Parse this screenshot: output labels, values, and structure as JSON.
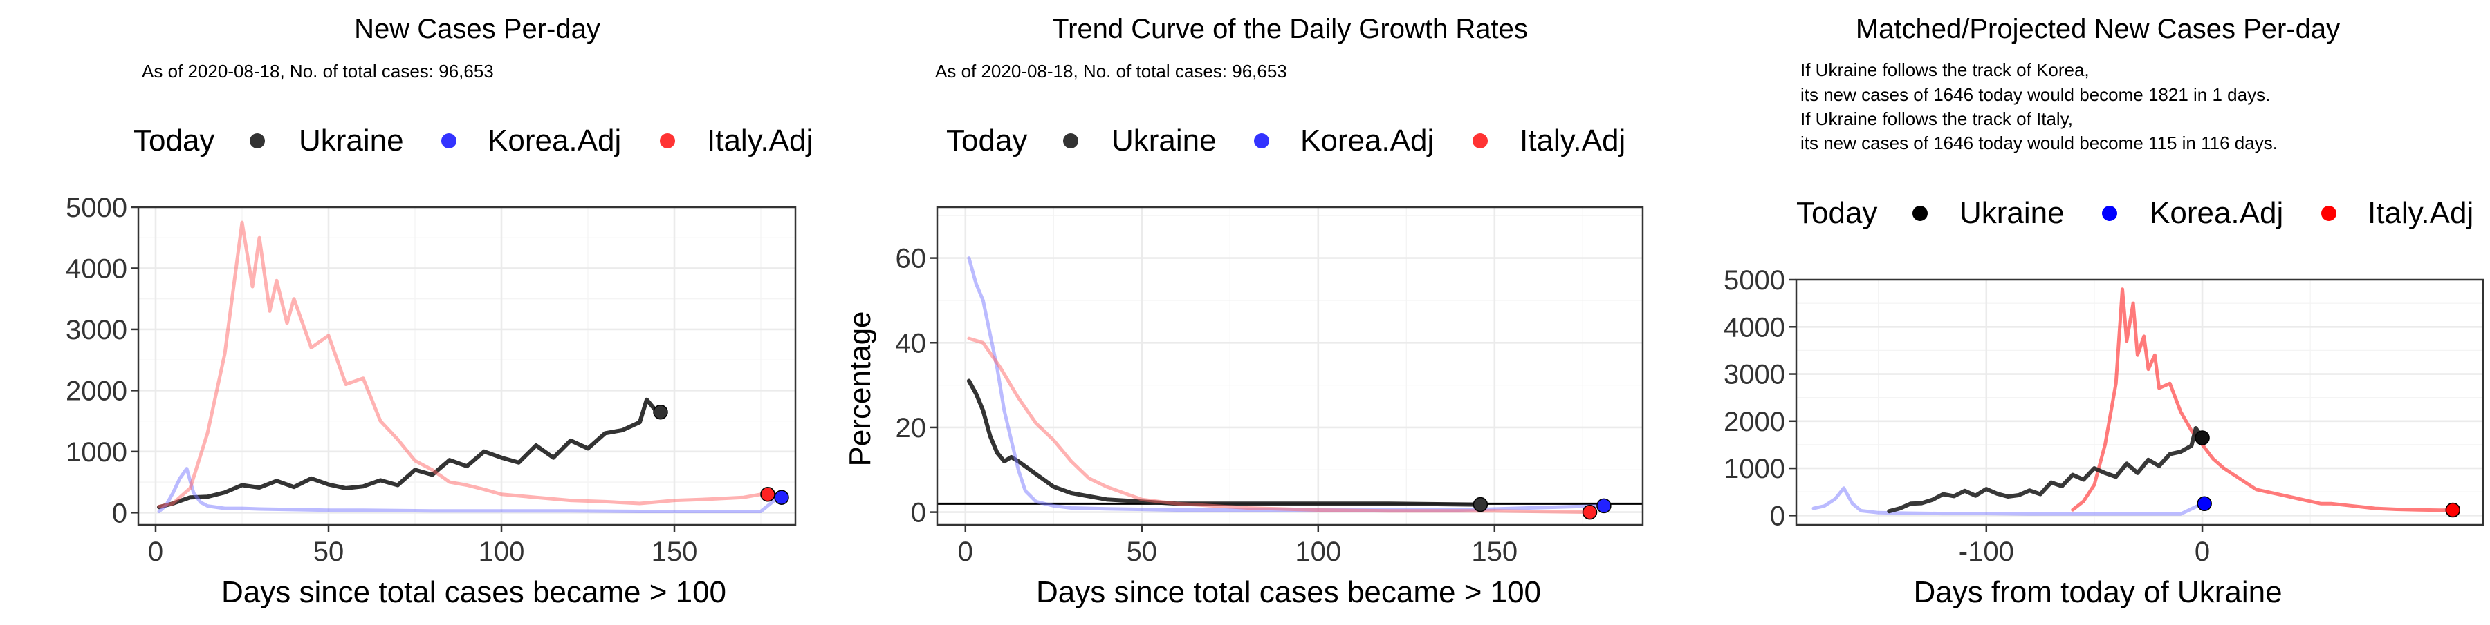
{
  "chart_data": [
    {
      "type": "line",
      "title": "New Cases Per-day",
      "subtitle": "As of 2020-08-18, No. of total cases: 96,653",
      "xlabel": "Days since total cases became > 100",
      "ylabel": "",
      "xlim": [
        -5,
        185
      ],
      "ylim": [
        -200,
        5000
      ],
      "xticks": [
        0,
        50,
        100,
        150
      ],
      "yticks": [
        0,
        1000,
        2000,
        3000,
        4000,
        5000
      ],
      "legend": {
        "position": "top",
        "title": "Today",
        "entries": [
          "Ukraine",
          "Korea.Adj",
          "Italy.Adj"
        ]
      },
      "series": [
        {
          "name": "Ukraine",
          "color": "#000000",
          "x": [
            1,
            5,
            10,
            15,
            20,
            25,
            30,
            35,
            40,
            45,
            50,
            55,
            60,
            65,
            70,
            75,
            80,
            85,
            90,
            95,
            100,
            105,
            110,
            115,
            120,
            125,
            130,
            135,
            140,
            142,
            145
          ],
          "y": [
            90,
            150,
            250,
            260,
            330,
            450,
            410,
            520,
            420,
            560,
            460,
            400,
            430,
            530,
            450,
            700,
            620,
            860,
            760,
            1000,
            900,
            820,
            1100,
            900,
            1180,
            1050,
            1300,
            1350,
            1480,
            1850,
            1646
          ]
        },
        {
          "name": "Korea.Adj",
          "color": "#0000ff",
          "x": [
            1,
            3,
            5,
            7,
            9,
            11,
            13,
            15,
            20,
            25,
            30,
            40,
            50,
            60,
            80,
            100,
            120,
            140,
            160,
            175,
            180
          ],
          "y": [
            20,
            120,
            320,
            560,
            720,
            320,
            170,
            110,
            70,
            70,
            60,
            50,
            40,
            40,
            30,
            30,
            30,
            20,
            20,
            20,
            250
          ]
        },
        {
          "name": "Italy.Adj",
          "color": "#ff0000",
          "x": [
            1,
            5,
            10,
            15,
            20,
            25,
            28,
            30,
            33,
            35,
            38,
            40,
            45,
            50,
            55,
            60,
            65,
            70,
            75,
            80,
            85,
            90,
            95,
            100,
            110,
            120,
            130,
            140,
            150,
            160,
            170,
            175
          ],
          "y": [
            100,
            150,
            400,
            1300,
            2600,
            4750,
            3700,
            4500,
            3300,
            3800,
            3100,
            3500,
            2700,
            2900,
            2100,
            2200,
            1500,
            1200,
            850,
            700,
            500,
            450,
            380,
            300,
            250,
            200,
            180,
            150,
            200,
            220,
            250,
            300
          ]
        }
      ],
      "today_points": [
        {
          "name": "Ukraine",
          "x": 146,
          "y": 1646
        },
        {
          "name": "Korea.Adj",
          "x": 181,
          "y": 250
        },
        {
          "name": "Italy.Adj",
          "x": 177,
          "y": 300
        }
      ]
    },
    {
      "type": "line",
      "title": "Trend Curve of the Daily Growth Rates",
      "subtitle": "As of 2020-08-18, No. of total cases: 96,653",
      "xlabel": "Days since total cases became > 100",
      "ylabel": "Percentage",
      "xlim": [
        -8,
        192
      ],
      "ylim": [
        -3,
        72
      ],
      "xticks": [
        0,
        50,
        100,
        150
      ],
      "yticks": [
        0,
        20,
        40,
        60
      ],
      "hline": 2,
      "legend": {
        "position": "top",
        "title": "Today",
        "entries": [
          "Ukraine",
          "Korea.Adj",
          "Italy.Adj"
        ]
      },
      "series": [
        {
          "name": "Ukraine",
          "color": "#000000",
          "x": [
            1,
            3,
            5,
            7,
            9,
            11,
            13,
            15,
            20,
            25,
            30,
            40,
            50,
            60,
            80,
            100,
            120,
            145
          ],
          "y": [
            31,
            28,
            24,
            18,
            14,
            12,
            13,
            12,
            9,
            6,
            4.5,
            3,
            2.5,
            2,
            2,
            2,
            2,
            1.8
          ]
        },
        {
          "name": "Korea.Adj",
          "color": "#0000ff",
          "x": [
            1,
            3,
            5,
            7,
            9,
            11,
            13,
            15,
            17,
            20,
            25,
            30,
            40,
            60,
            100,
            140,
            180
          ],
          "y": [
            60,
            54,
            50,
            42,
            34,
            24,
            17,
            10,
            5,
            2.5,
            1.5,
            1,
            0.8,
            0.5,
            0.5,
            0.5,
            1.5
          ]
        },
        {
          "name": "Italy.Adj",
          "color": "#ff0000",
          "x": [
            1,
            5,
            10,
            15,
            20,
            25,
            30,
            35,
            40,
            50,
            60,
            80,
            100,
            120,
            150,
            177
          ],
          "y": [
            41,
            40,
            34,
            27,
            21,
            17,
            12,
            8,
            6,
            3,
            2,
            1,
            0.5,
            0.3,
            0.3,
            0
          ]
        }
      ],
      "today_points": [
        {
          "name": "Ukraine",
          "x": 146,
          "y": 1.8
        },
        {
          "name": "Korea.Adj",
          "x": 181,
          "y": 1.5
        },
        {
          "name": "Italy.Adj",
          "x": 177,
          "y": 0
        }
      ]
    },
    {
      "type": "line",
      "title": "Matched/Projected New Cases Per-day",
      "subtitle": "",
      "annotation_lines": [
        "If Ukraine follows the track of Korea,",
        "its new cases of 1646 today would become 1821 in 1 days.",
        "If Ukraine follows the track of Italy,",
        "its new cases of 1646 today would become 115 in 116 days."
      ],
      "xlabel": "Days from today of Ukraine",
      "ylabel": "",
      "xlim": [
        -188,
        130
      ],
      "ylim": [
        -200,
        5000
      ],
      "xticks": [
        -100,
        0
      ],
      "yticks": [
        0,
        1000,
        2000,
        3000,
        4000,
        5000
      ],
      "legend": {
        "position": "top",
        "title": "Today",
        "entries": [
          "Ukraine",
          "Korea.Adj",
          "Italy.Adj"
        ]
      },
      "series": [
        {
          "name": "Korea.Adj",
          "color": "#0000ff",
          "x": [
            -180,
            -175,
            -170,
            -166,
            -162,
            -158,
            -150,
            -140,
            -120,
            -100,
            -80,
            -60,
            -40,
            -20,
            -10,
            0
          ],
          "y": [
            150,
            200,
            350,
            580,
            250,
            100,
            60,
            50,
            40,
            40,
            30,
            30,
            30,
            30,
            30,
            250
          ]
        },
        {
          "name": "Italy.Adj",
          "color": "#ff0000",
          "x": [
            -60,
            -55,
            -50,
            -45,
            -40,
            -37,
            -35,
            -32,
            -30,
            -27,
            -25,
            -22,
            -20,
            -15,
            -10,
            -5,
            0,
            5,
            10,
            15,
            20,
            25,
            30,
            35,
            40,
            45,
            50,
            55,
            60,
            70,
            80,
            90,
            100,
            110,
            116
          ],
          "y": [
            120,
            300,
            650,
            1500,
            2800,
            4800,
            3700,
            4500,
            3400,
            3800,
            3100,
            3400,
            2700,
            2800,
            2200,
            1800,
            1500,
            1200,
            1000,
            850,
            700,
            550,
            500,
            450,
            400,
            350,
            300,
            250,
            250,
            200,
            150,
            130,
            120,
            110,
            115
          ]
        },
        {
          "name": "Ukraine",
          "color": "#000000",
          "x": [
            -145,
            -140,
            -135,
            -130,
            -125,
            -120,
            -115,
            -110,
            -105,
            -100,
            -95,
            -90,
            -85,
            -80,
            -75,
            -70,
            -65,
            -60,
            -55,
            -50,
            -45,
            -40,
            -35,
            -30,
            -25,
            -20,
            -15,
            -10,
            -5,
            -3,
            0
          ],
          "y": [
            90,
            150,
            250,
            260,
            330,
            450,
            410,
            520,
            420,
            560,
            460,
            400,
            430,
            530,
            450,
            700,
            620,
            860,
            760,
            1000,
            900,
            820,
            1100,
            900,
            1180,
            1050,
            1300,
            1350,
            1480,
            1850,
            1646
          ]
        }
      ],
      "today_points": [
        {
          "name": "Ukraine",
          "x": 0,
          "y": 1646
        },
        {
          "name": "Korea.Adj",
          "x": 1,
          "y": 250
        },
        {
          "name": "Italy.Adj",
          "x": 116,
          "y": 115
        }
      ]
    }
  ]
}
